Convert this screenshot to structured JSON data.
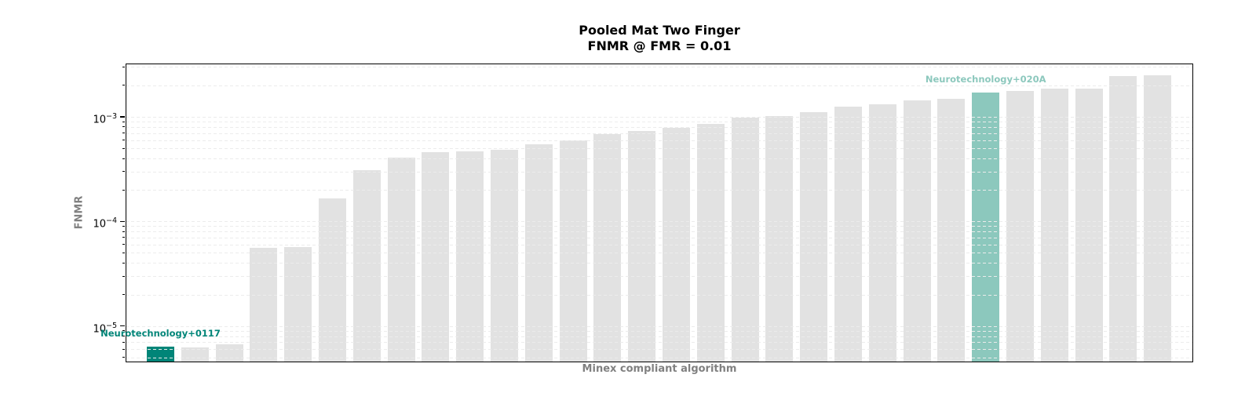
{
  "title": {
    "line1": "Pooled Mat Two Finger",
    "line2": "FNMR @ FMR = 0.01"
  },
  "axes": {
    "xlabel": "Minex compliant algorithm",
    "ylabel": "FNMR",
    "yscale": "log",
    "y_ticks": [
      {
        "base": "10",
        "exponent": "−3",
        "value": 0.001
      },
      {
        "base": "10",
        "exponent": "−4",
        "value": 0.0001
      },
      {
        "base": "10",
        "exponent": "−5",
        "value": 1e-05
      }
    ]
  },
  "chart_data": {
    "type": "bar",
    "title": "Pooled Mat Two Finger\nFNMR @ FMR = 0.01",
    "xlabel": "Minex compliant algorithm",
    "ylabel": "FNMR",
    "yscale": "log",
    "ylim": [
      4.5e-06,
      0.00323
    ],
    "grid": "horizontal dashed, major and minor log ticks",
    "legend": "none",
    "values": [
      6.4e-06,
      6.2e-06,
      6.7e-06,
      5.6e-05,
      5.7e-05,
      0.000166,
      0.00031,
      0.00041,
      0.00046,
      0.00047,
      0.00048,
      0.00055,
      0.0006,
      0.00068,
      0.00073,
      0.00079,
      0.00086,
      0.00098,
      0.00102,
      0.00111,
      0.00125,
      0.00132,
      0.00144,
      0.00149,
      0.00171,
      0.00177,
      0.00186,
      0.00186,
      0.00245,
      0.0025
    ],
    "highlights": [
      {
        "index": 0,
        "label": "Neurotechnology+0117",
        "color": "#008578"
      },
      {
        "index": 24,
        "label": "Neurotechnology+020A",
        "color": "#8cc8bd"
      }
    ],
    "bar_color_default": "#e2e2e2"
  },
  "colors": {
    "background": "#ffffff",
    "bar_default": "#e2e2e2",
    "bar_highlight_dark": "#008578",
    "bar_highlight_light": "#8cc8bd",
    "grid": "#ececec",
    "axis_label": "#808080",
    "tick_label": "#000000",
    "title": "#000000",
    "border": "#000000"
  }
}
